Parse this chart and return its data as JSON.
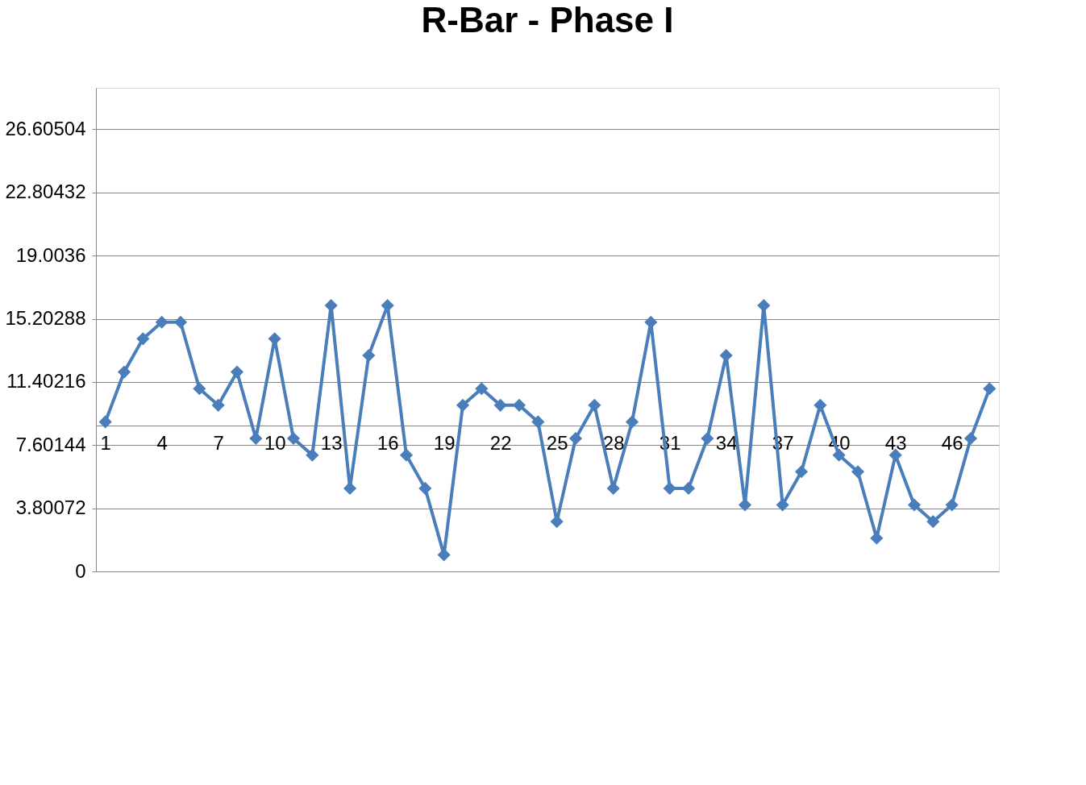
{
  "chart_data": {
    "type": "line",
    "title": "R-Bar - Phase I",
    "categories": [
      "1",
      null,
      null,
      "4",
      null,
      null,
      "7",
      null,
      null,
      "10",
      null,
      null,
      "13",
      null,
      null,
      "16",
      null,
      null,
      "19",
      null,
      null,
      "22",
      null,
      null,
      "25",
      null,
      null,
      "28",
      null,
      null,
      "31",
      null,
      null,
      "34",
      null,
      null,
      "37",
      null,
      null,
      "40",
      null,
      null,
      "43",
      null,
      null,
      "46",
      null,
      null
    ],
    "series": [
      {
        "color": "#4a7ebb",
        "values": [
          9,
          12,
          14,
          15,
          15,
          11,
          10,
          12,
          8,
          14,
          8,
          7,
          16,
          5,
          13,
          16,
          7,
          5,
          1,
          10,
          11,
          10,
          10,
          9,
          3,
          8,
          10,
          5,
          9,
          15,
          5,
          5,
          8,
          13,
          4,
          16,
          4,
          6,
          10,
          7,
          6,
          2,
          7,
          4,
          3,
          4,
          8,
          11
        ]
      }
    ],
    "ylim": [
      0,
      29.1
    ],
    "yticks": [
      0,
      3.80072,
      7.60144,
      11.40216,
      15.20288,
      19.0036,
      22.80432,
      26.60504
    ],
    "grid": "y",
    "marker": "diamond",
    "line_style": "solid"
  }
}
